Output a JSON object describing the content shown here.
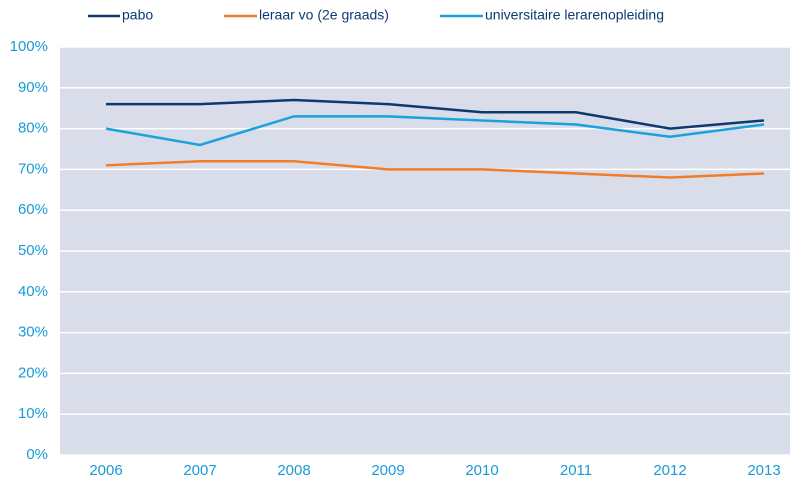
{
  "chart_data": {
    "type": "line",
    "categories": [
      "2006",
      "2007",
      "2008",
      "2009",
      "2010",
      "2011",
      "2012",
      "2013"
    ],
    "series": [
      {
        "name": "pabo",
        "color": "#0d3a6e",
        "values": [
          86,
          86,
          87,
          86,
          84,
          84,
          80,
          82
        ]
      },
      {
        "name": "leraar vo (2e graads)",
        "color": "#f07d2a",
        "values": [
          71,
          72,
          72,
          70,
          70,
          69,
          68,
          69
        ]
      },
      {
        "name": "universitaire lerarenopleiding",
        "color": "#1ba1dc",
        "values": [
          80,
          76,
          83,
          83,
          82,
          81,
          78,
          81
        ]
      }
    ],
    "ylim": [
      0,
      100
    ],
    "yticks": [
      {
        "value": 0,
        "label": "0%"
      },
      {
        "value": 10,
        "label": "10%"
      },
      {
        "value": 20,
        "label": "20%"
      },
      {
        "value": 30,
        "label": "30%"
      },
      {
        "value": 40,
        "label": "40%"
      },
      {
        "value": 50,
        "label": "50%"
      },
      {
        "value": 60,
        "label": "60%"
      },
      {
        "value": 70,
        "label": "70%"
      },
      {
        "value": 80,
        "label": "80%"
      },
      {
        "value": 90,
        "label": "90%"
      },
      {
        "value": 100,
        "label": "100%"
      }
    ],
    "grid": true,
    "legend": "top"
  }
}
